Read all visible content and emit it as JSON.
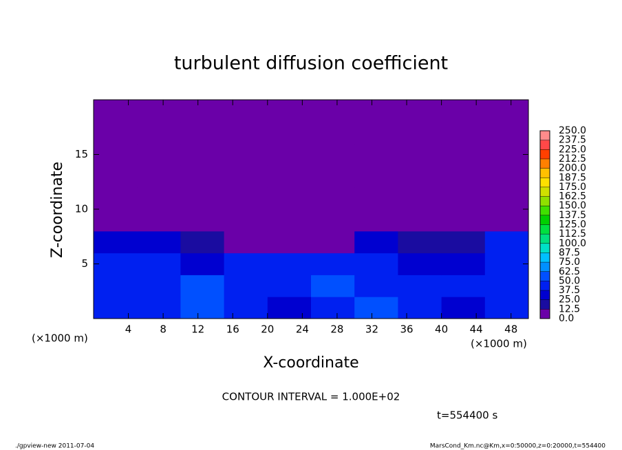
{
  "chart_data": {
    "type": "heatmap",
    "title": "turbulent diffusion coefficient",
    "x_label": "X-coordinate",
    "y_label": "Z-coordinate",
    "x_unit_left": "(×1000 m)",
    "x_unit_right": "(×1000 m)",
    "contour_note": "CONTOUR INTERVAL = 1.000E+02",
    "time_note": "t=554400 s",
    "footer_left": "./gpview-new  2011-07-04",
    "footer_right": "MarsCond_Km.nc@Km,x=0:50000,z=0:20000,t=554400",
    "xlim": [
      0,
      50
    ],
    "ylim": [
      0,
      20
    ],
    "xticks": [
      4,
      8,
      12,
      16,
      20,
      24,
      28,
      32,
      36,
      40,
      44,
      48
    ],
    "yticks": [
      5,
      10,
      15
    ],
    "x": [
      2.5,
      7.5,
      12.5,
      17.5,
      22.5,
      27.5,
      32.5,
      37.5,
      42.5,
      47.5
    ],
    "y": [
      1,
      3,
      5,
      7,
      9,
      11,
      13,
      15,
      17,
      19
    ],
    "values": [
      [
        45,
        40,
        50,
        45,
        35,
        45,
        55,
        40,
        35,
        45
      ],
      [
        40,
        45,
        50,
        40,
        45,
        55,
        45,
        40,
        45,
        40
      ],
      [
        45,
        40,
        35,
        45,
        40,
        45,
        40,
        35,
        30,
        45
      ],
      [
        35,
        25,
        20,
        10,
        5,
        10,
        30,
        15,
        20,
        40
      ],
      [
        5,
        5,
        2,
        2,
        0,
        2,
        2,
        2,
        5,
        5
      ],
      [
        3,
        5,
        2,
        2,
        2,
        2,
        2,
        2,
        3,
        2
      ],
      [
        0,
        2,
        2,
        0,
        0,
        2,
        0,
        0,
        0,
        2
      ],
      [
        0,
        0,
        0,
        0,
        0,
        0,
        0,
        0,
        0,
        0
      ],
      [
        0,
        0,
        0,
        0,
        0,
        0,
        0,
        0,
        0,
        0
      ],
      [
        0,
        0,
        0,
        0,
        0,
        0,
        0,
        0,
        0,
        0
      ]
    ],
    "levels": [
      {
        "value": 0,
        "label": "0.0"
      },
      {
        "value": 12.5,
        "label": "12.5"
      },
      {
        "value": 25,
        "label": "25.0"
      },
      {
        "value": 37.5,
        "label": "37.5"
      },
      {
        "value": 50,
        "label": "50.0"
      },
      {
        "value": 62.5,
        "label": "62.5"
      },
      {
        "value": 75,
        "label": "75.0"
      },
      {
        "value": 87.5,
        "label": "87.5"
      },
      {
        "value": 100,
        "label": "100.0"
      },
      {
        "value": 112.5,
        "label": "112.5"
      },
      {
        "value": 125,
        "label": "125.0"
      },
      {
        "value": 137.5,
        "label": "137.5"
      },
      {
        "value": 150,
        "label": "150.0"
      },
      {
        "value": 162.5,
        "label": "162.5"
      },
      {
        "value": 175,
        "label": "175.0"
      },
      {
        "value": 187.5,
        "label": "187.5"
      },
      {
        "value": 200,
        "label": "200.0"
      },
      {
        "value": 212.5,
        "label": "212.5"
      },
      {
        "value": 225,
        "label": "225.0"
      },
      {
        "value": 237.5,
        "label": "237.5"
      },
      {
        "value": 250,
        "label": "250.0"
      }
    ],
    "colors": [
      "#6a00a8",
      "#1a0ca0",
      "#0000d0",
      "#0020f0",
      "#0050ff",
      "#0090ff",
      "#00c0ff",
      "#00e0c8",
      "#00e080",
      "#00e040",
      "#00d000",
      "#40e000",
      "#90e000",
      "#d0e000",
      "#ffe000",
      "#ffc000",
      "#ff8000",
      "#ff4000",
      "#ff4848",
      "#ff8c8c"
    ]
  }
}
